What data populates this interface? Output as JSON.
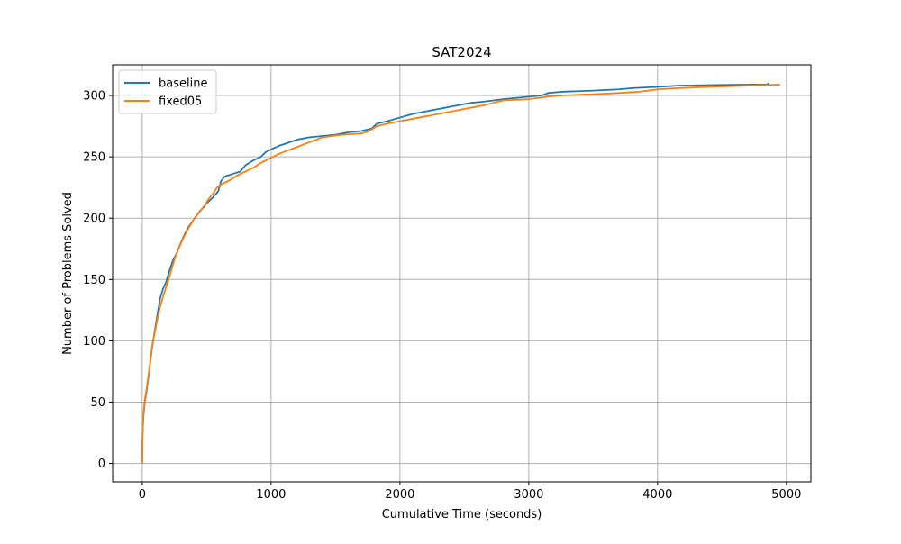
{
  "chart_data": {
    "type": "line",
    "title": "SAT2024",
    "xlabel": "Cumulative Time (seconds)",
    "ylabel": "Number of Problems Solved",
    "xlim": [
      -230,
      5190
    ],
    "ylim": [
      -15,
      325
    ],
    "xticks": [
      0,
      1000,
      2000,
      3000,
      4000,
      5000
    ],
    "xtick_labels": [
      "0",
      "1000",
      "2000",
      "3000",
      "4000",
      "5000"
    ],
    "yticks": [
      0,
      50,
      100,
      150,
      200,
      250,
      300
    ],
    "ytick_labels": [
      "0",
      "50",
      "100",
      "150",
      "200",
      "250",
      "300"
    ],
    "grid": true,
    "legend_position": "top-left",
    "series": [
      {
        "name": "baseline",
        "color": "#1f77b4",
        "points": [
          [
            0,
            0
          ],
          [
            2,
            20
          ],
          [
            5,
            30
          ],
          [
            10,
            40
          ],
          [
            20,
            50
          ],
          [
            35,
            60
          ],
          [
            50,
            72
          ],
          [
            65,
            85
          ],
          [
            80,
            97
          ],
          [
            100,
            110
          ],
          [
            120,
            123
          ],
          [
            140,
            135
          ],
          [
            160,
            142
          ],
          [
            185,
            148
          ],
          [
            210,
            157
          ],
          [
            240,
            166
          ],
          [
            270,
            172
          ],
          [
            300,
            180
          ],
          [
            330,
            187
          ],
          [
            360,
            193
          ],
          [
            400,
            199
          ],
          [
            450,
            206
          ],
          [
            500,
            212
          ],
          [
            550,
            217
          ],
          [
            590,
            222
          ],
          [
            610,
            230
          ],
          [
            640,
            234
          ],
          [
            700,
            236
          ],
          [
            760,
            238
          ],
          [
            800,
            243
          ],
          [
            860,
            247
          ],
          [
            920,
            250
          ],
          [
            960,
            254
          ],
          [
            1000,
            256
          ],
          [
            1060,
            259
          ],
          [
            1120,
            261
          ],
          [
            1200,
            264
          ],
          [
            1300,
            266
          ],
          [
            1400,
            267
          ],
          [
            1500,
            268
          ],
          [
            1600,
            270
          ],
          [
            1700,
            271
          ],
          [
            1780,
            273
          ],
          [
            1820,
            277
          ],
          [
            1900,
            279
          ],
          [
            2000,
            282
          ],
          [
            2100,
            285
          ],
          [
            2250,
            288
          ],
          [
            2400,
            291
          ],
          [
            2550,
            294
          ],
          [
            2650,
            295
          ],
          [
            2800,
            297
          ],
          [
            3000,
            299
          ],
          [
            3100,
            300
          ],
          [
            3150,
            302
          ],
          [
            3250,
            303
          ],
          [
            3500,
            304
          ],
          [
            3700,
            305
          ],
          [
            3800,
            306
          ],
          [
            4000,
            307
          ],
          [
            4150,
            308
          ],
          [
            4500,
            308.6
          ],
          [
            4850,
            309
          ],
          [
            4865,
            310
          ]
        ]
      },
      {
        "name": "fixed05",
        "color": "#ff7f0e",
        "points": [
          [
            0,
            0
          ],
          [
            2,
            22
          ],
          [
            5,
            32
          ],
          [
            10,
            42
          ],
          [
            20,
            52
          ],
          [
            35,
            62
          ],
          [
            50,
            73
          ],
          [
            65,
            86
          ],
          [
            80,
            98
          ],
          [
            100,
            108
          ],
          [
            120,
            119
          ],
          [
            140,
            128
          ],
          [
            165,
            137
          ],
          [
            195,
            147
          ],
          [
            225,
            157
          ],
          [
            255,
            168
          ],
          [
            290,
            177
          ],
          [
            325,
            185
          ],
          [
            360,
            192
          ],
          [
            400,
            199
          ],
          [
            440,
            205
          ],
          [
            480,
            209
          ],
          [
            510,
            215
          ],
          [
            550,
            220
          ],
          [
            580,
            225
          ],
          [
            620,
            228
          ],
          [
            680,
            231
          ],
          [
            740,
            235
          ],
          [
            800,
            238
          ],
          [
            860,
            241
          ],
          [
            920,
            245
          ],
          [
            980,
            248
          ],
          [
            1050,
            252
          ],
          [
            1100,
            254
          ],
          [
            1200,
            258
          ],
          [
            1300,
            262
          ],
          [
            1400,
            266
          ],
          [
            1550,
            268
          ],
          [
            1700,
            269
          ],
          [
            1760,
            271
          ],
          [
            1820,
            275
          ],
          [
            1900,
            277
          ],
          [
            2000,
            279
          ],
          [
            2150,
            282
          ],
          [
            2250,
            284
          ],
          [
            2400,
            287
          ],
          [
            2550,
            290
          ],
          [
            2650,
            292
          ],
          [
            2800,
            296
          ],
          [
            3000,
            297
          ],
          [
            3150,
            299
          ],
          [
            3250,
            300
          ],
          [
            3500,
            301
          ],
          [
            3700,
            302
          ],
          [
            3850,
            303
          ],
          [
            4000,
            305
          ],
          [
            4150,
            306
          ],
          [
            4400,
            307
          ],
          [
            4700,
            308
          ],
          [
            4950,
            309
          ]
        ]
      }
    ]
  }
}
